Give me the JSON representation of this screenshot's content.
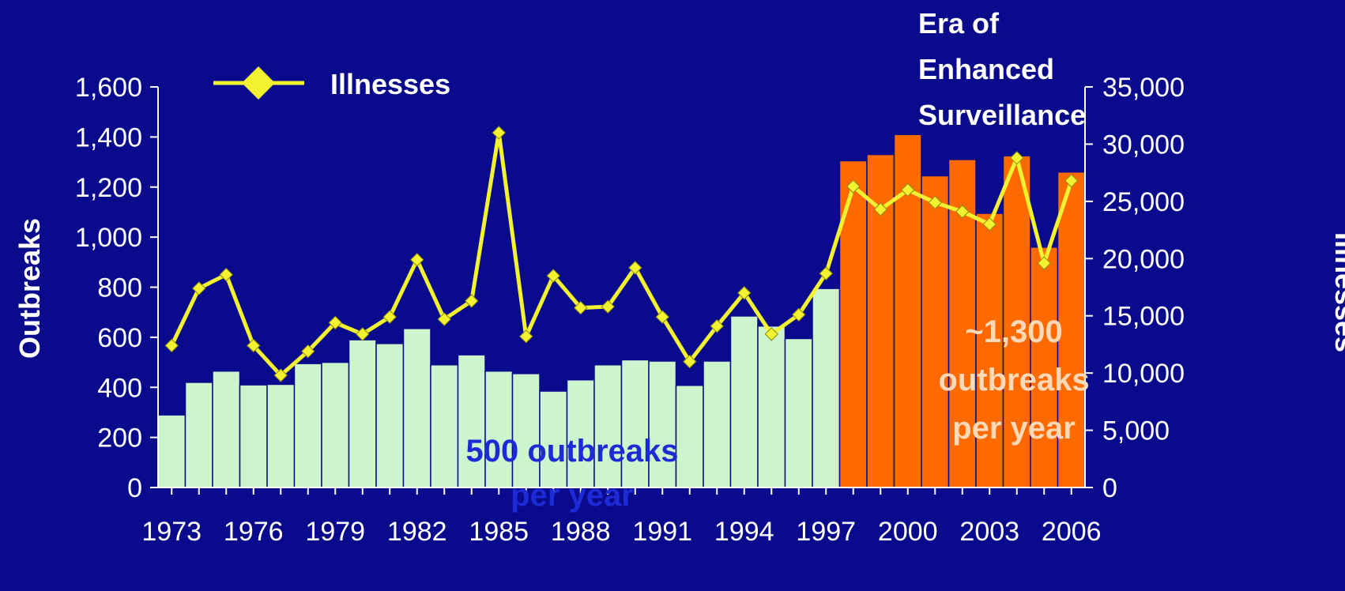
{
  "chart_data": {
    "type": "bar",
    "x": [
      1973,
      1974,
      1975,
      1976,
      1977,
      1978,
      1979,
      1980,
      1981,
      1982,
      1983,
      1984,
      1985,
      1986,
      1987,
      1988,
      1989,
      1990,
      1991,
      1992,
      1993,
      1994,
      1995,
      1996,
      1997,
      1998,
      1999,
      2000,
      2001,
      2002,
      2003,
      2004,
      2005,
      2006
    ],
    "x_tick_labels": [
      "1973",
      "1976",
      "1979",
      "1982",
      "1985",
      "1988",
      "1991",
      "1994",
      "1997",
      "2000",
      "2003",
      "2006"
    ],
    "series": [
      {
        "type": "bar",
        "axis": "left",
        "values": [
          290,
          420,
          465,
          410,
          412,
          495,
          500,
          590,
          575,
          635,
          490,
          530,
          465,
          455,
          385,
          430,
          490,
          510,
          505,
          408,
          505,
          685,
          645,
          595,
          795,
          1305,
          1330,
          1410,
          1245,
          1310,
          1095,
          1325,
          960,
          1260
        ],
        "colors": [
          "#cdf5cd",
          "#cdf5cd",
          "#cdf5cd",
          "#cdf5cd",
          "#cdf5cd",
          "#cdf5cd",
          "#cdf5cd",
          "#cdf5cd",
          "#cdf5cd",
          "#cdf5cd",
          "#cdf5cd",
          "#cdf5cd",
          "#cdf5cd",
          "#cdf5cd",
          "#cdf5cd",
          "#cdf5cd",
          "#cdf5cd",
          "#cdf5cd",
          "#cdf5cd",
          "#cdf5cd",
          "#cdf5cd",
          "#cdf5cd",
          "#cdf5cd",
          "#cdf5cd",
          "#cdf5cd",
          "#ff6a00",
          "#ff6a00",
          "#ff6a00",
          "#ff6a00",
          "#ff6a00",
          "#ff6a00",
          "#ff6a00",
          "#ff6a00",
          "#ff6a00"
        ]
      },
      {
        "type": "line",
        "axis": "right",
        "name": "Illnesses",
        "color": "#f2f230",
        "marker": "diamond",
        "values": [
          12400,
          17400,
          18600,
          12400,
          9800,
          11900,
          14400,
          13400,
          14900,
          19900,
          14700,
          16300,
          31000,
          13200,
          18500,
          15700,
          15800,
          19200,
          14900,
          11000,
          14100,
          17000,
          13400,
          15100,
          18700,
          26300,
          24300,
          26000,
          24900,
          24100,
          23000,
          28800,
          19600,
          26800
        ]
      }
    ],
    "yaxis_left": {
      "label": "Outbreaks",
      "range": [
        0,
        1600
      ],
      "ticks": [
        "0",
        "200",
        "400",
        "600",
        "800",
        "1,000",
        "1,200",
        "1,400",
        "1,600"
      ]
    },
    "yaxis_right": {
      "label": "Illnesses",
      "range": [
        0,
        35000
      ],
      "ticks": [
        "0",
        "5,000",
        "10,000",
        "15,000",
        "20,000",
        "25,000",
        "30,000",
        "35,000"
      ]
    },
    "legend": {
      "position": "top-left",
      "label": "Illnesses"
    },
    "annotations": {
      "era": [
        "Era of",
        "Enhanced",
        "Surveillance"
      ],
      "left_note": [
        "500 outbreaks",
        "per year"
      ],
      "right_note": [
        "~1,300",
        "outbreaks",
        "per year"
      ]
    },
    "grid": false,
    "background": "#0a0a8c"
  }
}
